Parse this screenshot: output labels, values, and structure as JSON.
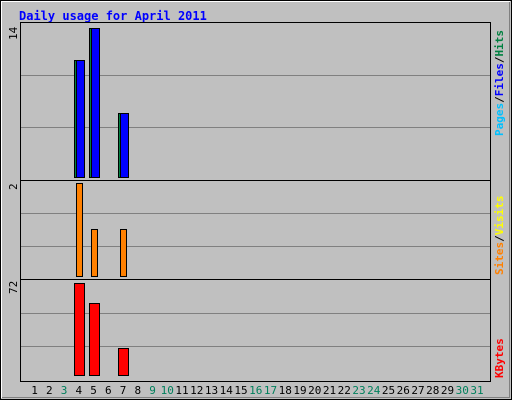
{
  "chart_data": [
    {
      "type": "bar",
      "panel": "hits-files-pages",
      "title": "Daily usage for April 2011",
      "ymax_label": "14",
      "ylim": [
        0,
        14
      ],
      "legend": [
        {
          "name": "Pages",
          "color": "#00c0ff"
        },
        {
          "name": "Files",
          "color": "#0000ff"
        },
        {
          "name": "Hits",
          "color": "#008040"
        }
      ],
      "series": [
        {
          "name": "Hits",
          "color": "#008040",
          "x": [
            4,
            5,
            7
          ],
          "values": [
            11,
            14,
            6
          ]
        },
        {
          "name": "Files",
          "color": "#0000ff",
          "x": [
            4,
            5,
            7
          ],
          "values": [
            11,
            14,
            6
          ]
        }
      ]
    },
    {
      "type": "bar",
      "panel": "visits-sites",
      "ymax_label": "2",
      "ylim": [
        0,
        2
      ],
      "legend": [
        {
          "name": "Sites",
          "color": "#ff8000"
        },
        {
          "name": "Visits",
          "color": "#ffff00"
        }
      ],
      "series": [
        {
          "name": "Sites",
          "color": "#ff8000",
          "x": [
            4,
            5,
            7
          ],
          "values": [
            2,
            1,
            1
          ]
        }
      ]
    },
    {
      "type": "bar",
      "panel": "kbytes",
      "ymax_label": "72",
      "ylim": [
        0,
        72
      ],
      "legend": [
        {
          "name": "KBytes",
          "color": "#ff0000"
        }
      ],
      "series": [
        {
          "name": "KBytes",
          "color": "#ff0000",
          "x": [
            4,
            5,
            7
          ],
          "values": [
            72,
            56,
            21
          ]
        }
      ]
    }
  ],
  "days": [
    {
      "label": "1",
      "weekend": false
    },
    {
      "label": "2",
      "weekend": false
    },
    {
      "label": "3",
      "weekend": true
    },
    {
      "label": "4",
      "weekend": false
    },
    {
      "label": "5",
      "weekend": false
    },
    {
      "label": "6",
      "weekend": false
    },
    {
      "label": "7",
      "weekend": false
    },
    {
      "label": "8",
      "weekend": false
    },
    {
      "label": "9",
      "weekend": true
    },
    {
      "label": "10",
      "weekend": true
    },
    {
      "label": "11",
      "weekend": false
    },
    {
      "label": "12",
      "weekend": false
    },
    {
      "label": "13",
      "weekend": false
    },
    {
      "label": "14",
      "weekend": false
    },
    {
      "label": "15",
      "weekend": false
    },
    {
      "label": "16",
      "weekend": true
    },
    {
      "label": "17",
      "weekend": true
    },
    {
      "label": "18",
      "weekend": false
    },
    {
      "label": "19",
      "weekend": false
    },
    {
      "label": "20",
      "weekend": false
    },
    {
      "label": "21",
      "weekend": false
    },
    {
      "label": "22",
      "weekend": false
    },
    {
      "label": "23",
      "weekend": true
    },
    {
      "label": "24",
      "weekend": true
    },
    {
      "label": "25",
      "weekend": false
    },
    {
      "label": "26",
      "weekend": false
    },
    {
      "label": "27",
      "weekend": false
    },
    {
      "label": "28",
      "weekend": false
    },
    {
      "label": "29",
      "weekend": false
    },
    {
      "label": "30",
      "weekend": true
    },
    {
      "label": "31",
      "weekend": true
    }
  ],
  "colors": {
    "background": "#c0c0c0",
    "plot_bg": "#c0c0c0",
    "gridline": "#808080",
    "title": "#0000ff",
    "weekday_label": "#000000",
    "weekend_label": "#00805c",
    "separator_slash": "#000000"
  },
  "separator": "/"
}
